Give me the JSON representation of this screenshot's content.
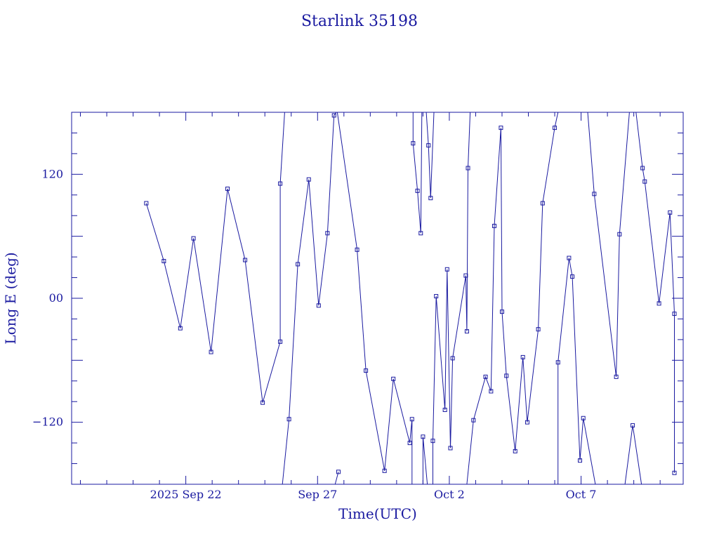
{
  "chart_data": {
    "type": "line",
    "title": "Starlink 35198",
    "xlabel": "Time(UTC)",
    "ylabel": "Long E (deg)",
    "x_unit": "days",
    "x_tick_labels": [
      {
        "x": "2025-09-22",
        "label": "2025 Sep 22"
      },
      {
        "x": "2025-09-27",
        "label": "Sep 27"
      },
      {
        "x": "2025-10-02",
        "label": "Oct  2"
      },
      {
        "x": "2025-10-07",
        "label": "Oct  7"
      }
    ],
    "xlim": [
      "2025-09-17T16:00",
      "2025-10-10T21:00"
    ],
    "ylim": [
      -180,
      180
    ],
    "y_ticks": [
      -120,
      0,
      120
    ],
    "y_tick_labels": [
      "−120",
      "00",
      "120"
    ],
    "color": "#1a1aa0",
    "points": [
      [
        "2025-09-20T12:00",
        92
      ],
      [
        "2025-09-21T04:00",
        36
      ],
      [
        "2025-09-21T19:00",
        -29
      ],
      [
        "2025-09-22T07:00",
        58
      ],
      [
        "2025-09-22T23:00",
        -52
      ],
      [
        "2025-09-23T14:00",
        106
      ],
      [
        "2025-09-24T06:00",
        37
      ],
      [
        "2025-09-24T22:00",
        -101
      ],
      [
        "2025-09-25T14:00",
        -42
      ],
      [
        "2025-09-25T14:00",
        111
      ],
      [
        "2025-09-25T18:00",
        180
      ],
      null,
      [
        "2025-09-25T16:00",
        -180
      ],
      [
        "2025-09-25T22:00",
        -117
      ],
      [
        "2025-09-26T06:00",
        33
      ],
      [
        "2025-09-26T16:00",
        115
      ],
      [
        "2025-09-27T01:00",
        -7
      ],
      [
        "2025-09-27T09:00",
        63
      ],
      [
        "2025-09-27T15:00",
        177
      ],
      [
        "2025-09-27T17:00",
        180
      ],
      null,
      [
        "2025-09-27T16:00",
        -180
      ],
      [
        "2025-09-27T19:00",
        -168
      ],
      null,
      [
        "2025-09-27T18:00",
        180
      ],
      [
        "2025-09-28T12:00",
        47
      ],
      [
        "2025-09-28T20:00",
        -70
      ],
      [
        "2025-09-29T13:00",
        -167
      ],
      [
        "2025-09-29T21:00",
        -78
      ],
      [
        "2025-09-30T12:00",
        -140
      ],
      [
        "2025-09-30T14:00",
        -117
      ],
      [
        "2025-09-30T14:00",
        -180
      ],
      null,
      [
        "2025-09-30T15:00",
        180
      ],
      [
        "2025-09-30T15:00",
        150
      ],
      [
        "2025-09-30T19:00",
        104
      ],
      [
        "2025-09-30T22:00",
        63
      ],
      [
        "2025-09-30T23:00",
        180
      ],
      null,
      [
        "2025-10-01T00:00",
        -180
      ],
      [
        "2025-10-01T00:00",
        -134
      ],
      [
        "2025-10-01T04:00",
        -180
      ],
      null,
      [
        "2025-10-01T03:00",
        180
      ],
      [
        "2025-10-01T05:00",
        148
      ],
      [
        "2025-10-01T07:00",
        97
      ],
      [
        "2025-10-01T10:00",
        180
      ],
      null,
      [
        "2025-10-01T09:00",
        -180
      ],
      [
        "2025-10-01T09:00",
        -138
      ],
      [
        "2025-10-01T12:00",
        2
      ],
      [
        "2025-10-01T20:00",
        -108
      ],
      [
        "2025-10-01T22:00",
        28
      ],
      [
        "2025-10-02T01:00",
        -145
      ],
      [
        "2025-10-02T03:00",
        -58
      ],
      [
        "2025-10-02T15:00",
        22
      ],
      [
        "2025-10-02T16:00",
        -32
      ],
      [
        "2025-10-02T17:00",
        126
      ],
      [
        "2025-10-02T19:00",
        180
      ],
      null,
      [
        "2025-10-02T16:00",
        -180
      ],
      [
        "2025-10-02T22:00",
        -118
      ],
      [
        "2025-10-03T09:00",
        -76
      ],
      [
        "2025-10-03T14:00",
        -90
      ],
      [
        "2025-10-03T17:00",
        70
      ],
      [
        "2025-10-03T23:00",
        165
      ],
      [
        "2025-10-04T00:00",
        -13
      ],
      [
        "2025-10-04T04:00",
        -75
      ],
      [
        "2025-10-04T12:00",
        -148
      ],
      [
        "2025-10-04T19:00",
        -57
      ],
      [
        "2025-10-04T23:00",
        -120
      ],
      [
        "2025-10-05T09:00",
        -30
      ],
      [
        "2025-10-05T13:00",
        92
      ],
      [
        "2025-10-06T00:00",
        165
      ],
      [
        "2025-10-06T03:00",
        180
      ],
      null,
      [
        "2025-10-06T03:00",
        -180
      ],
      [
        "2025-10-06T03:00",
        -62
      ],
      [
        "2025-10-06T13:00",
        39
      ],
      [
        "2025-10-06T16:00",
        21
      ],
      [
        "2025-10-06T23:00",
        -157
      ],
      [
        "2025-10-07T02:00",
        -116
      ],
      [
        "2025-10-07T13:00",
        -180
      ],
      null,
      [
        "2025-10-07T06:00",
        180
      ],
      [
        "2025-10-07T12:00",
        101
      ],
      [
        "2025-10-08T08:00",
        -76
      ],
      [
        "2025-10-08T11:00",
        62
      ],
      [
        "2025-10-08T20:00",
        180
      ],
      null,
      [
        "2025-10-08T16:00",
        -180
      ],
      [
        "2025-10-08T23:00",
        -123
      ],
      [
        "2025-10-09T07:00",
        -180
      ],
      null,
      [
        "2025-10-09T02:00",
        180
      ],
      [
        "2025-10-09T08:00",
        126
      ],
      [
        "2025-10-09T10:00",
        113
      ],
      [
        "2025-10-09T23:00",
        -5
      ],
      [
        "2025-10-10T09:00",
        83
      ],
      [
        "2025-10-10T13:00",
        -15
      ],
      [
        "2025-10-10T13:00",
        -169
      ]
    ]
  }
}
